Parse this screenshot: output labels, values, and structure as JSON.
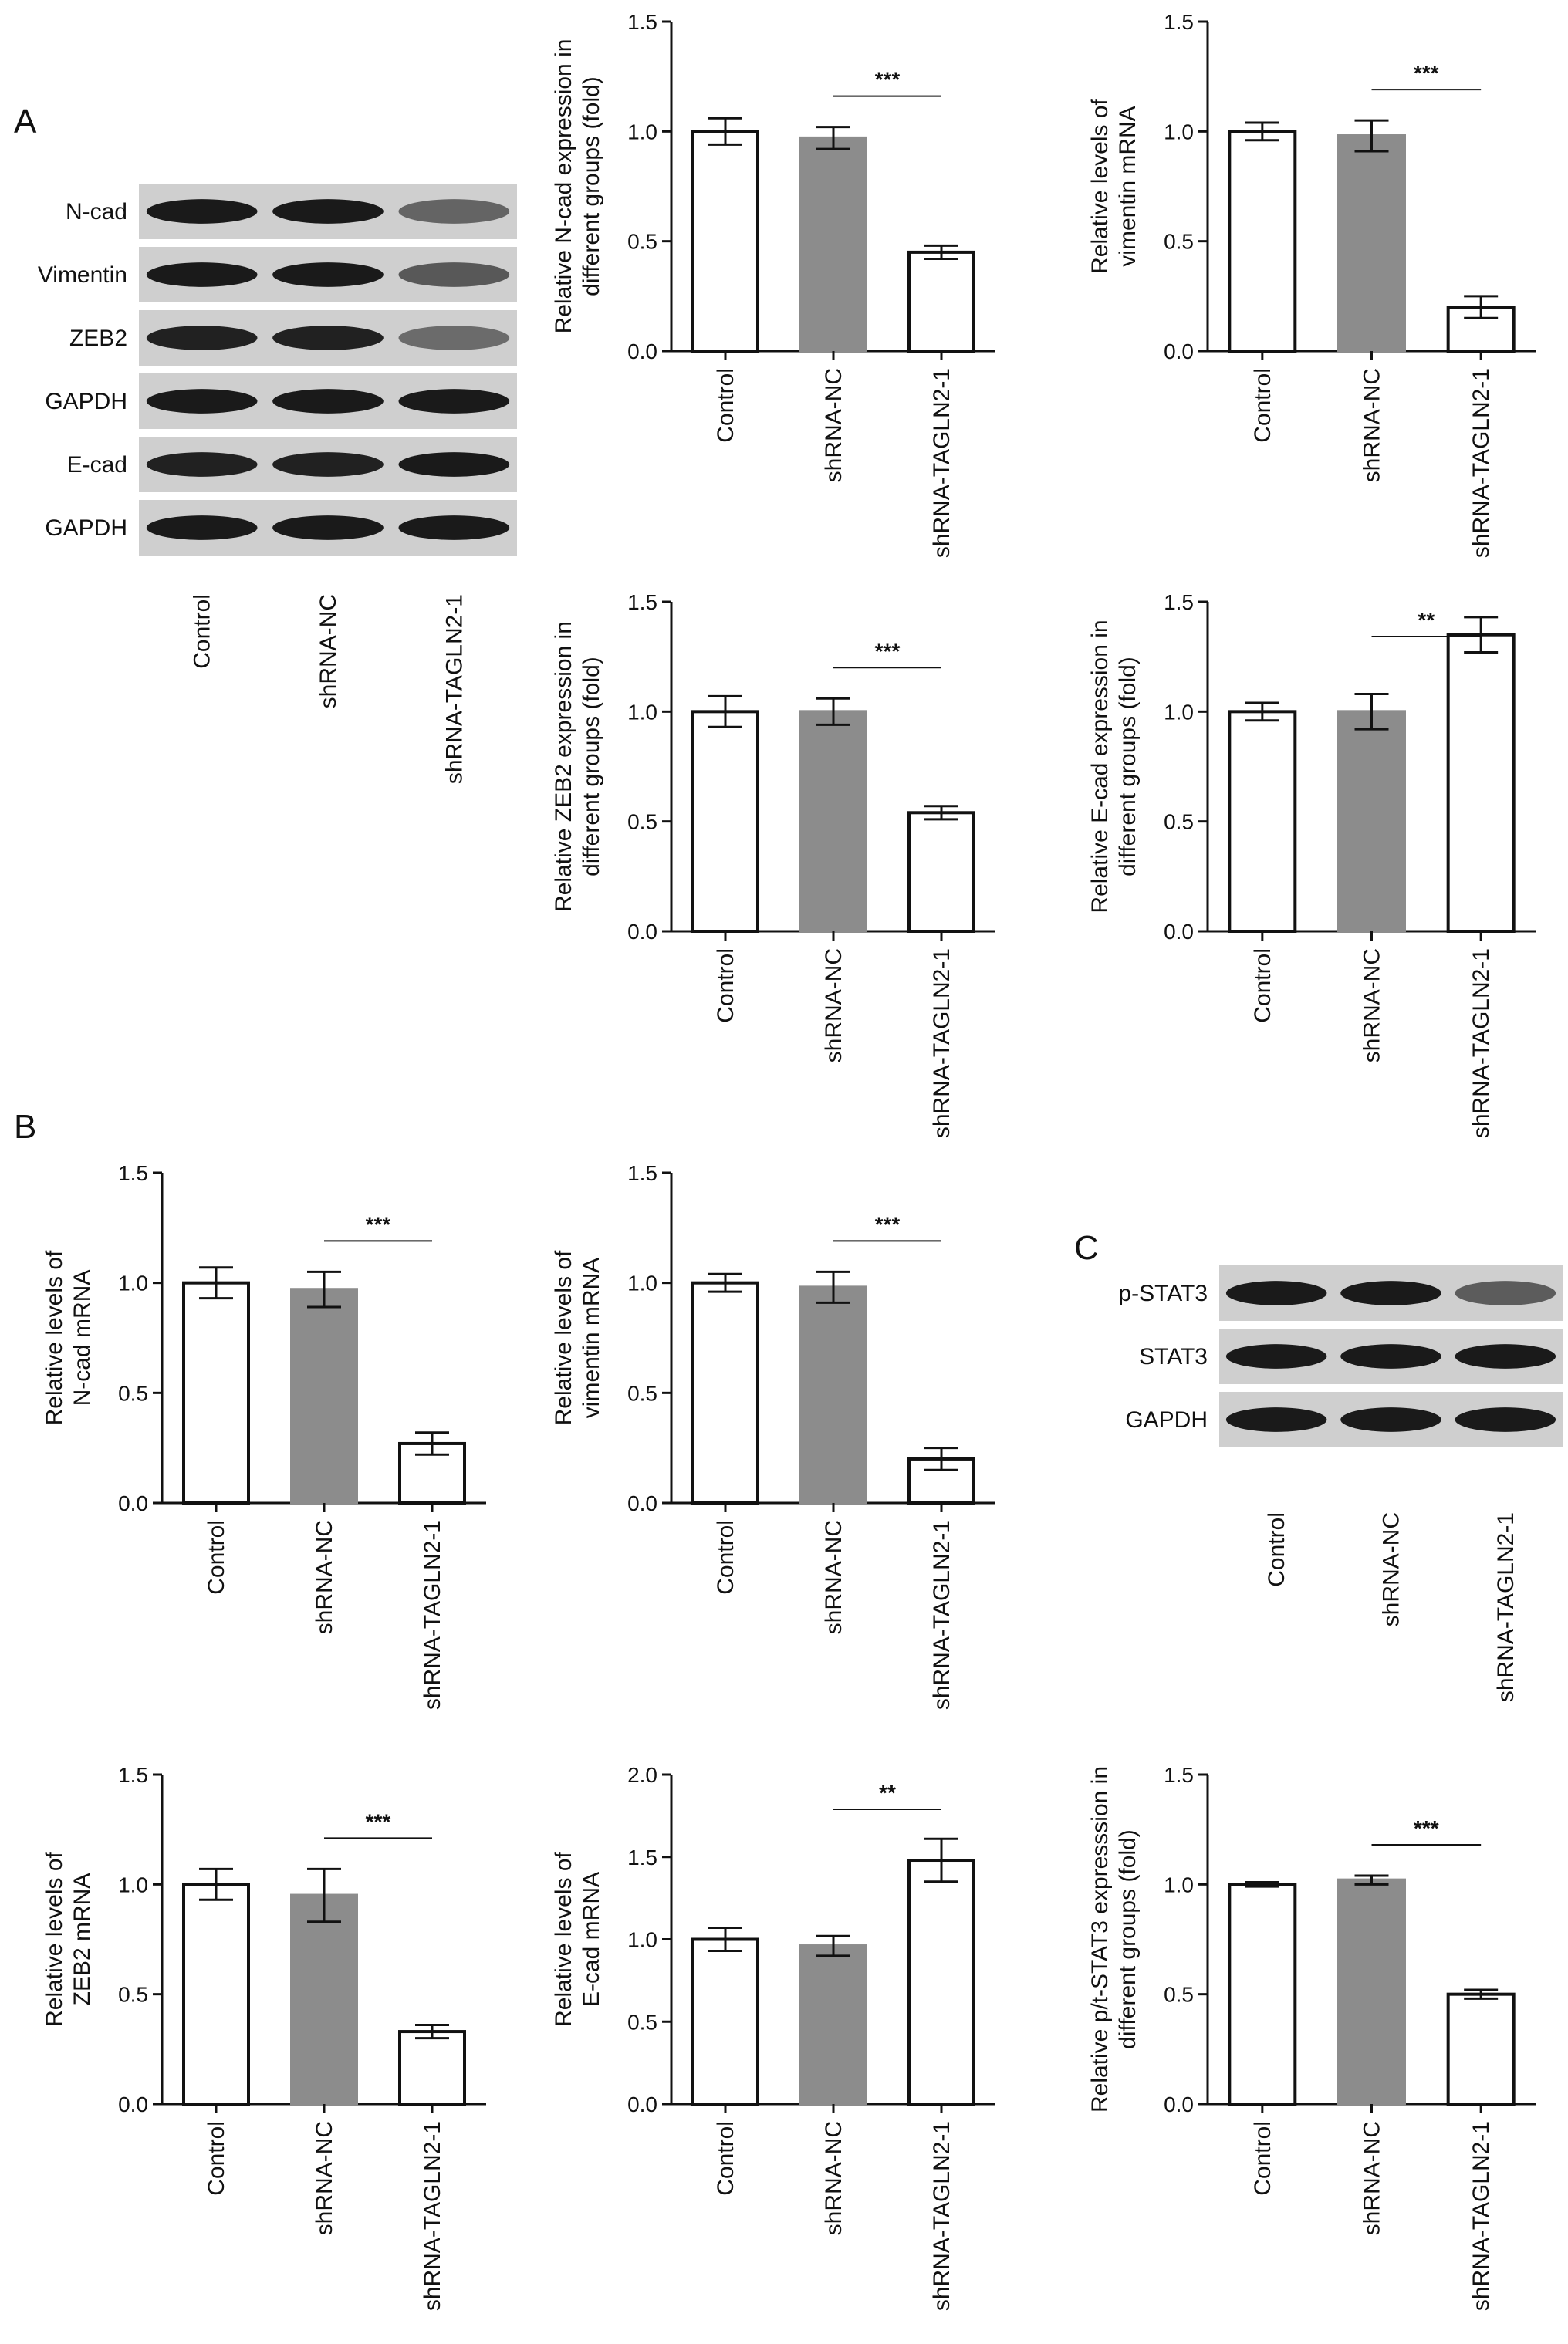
{
  "panels": [
    "A",
    "B",
    "C"
  ],
  "categories": [
    "Control",
    "shRNA-NC",
    "shRNA-TAGLN2-1"
  ],
  "colors": {
    "control": "#ffffff",
    "shRNA_NC": "#8c8c8c",
    "knockdown": "#ffffff",
    "stroke": "#111111",
    "blot_bg": "#cfcfcf",
    "band": "#1a1a1a"
  },
  "blots": [
    {
      "panel": "A",
      "rows": [
        {
          "label": "N-cad",
          "intensity": [
            1.0,
            1.0,
            0.45
          ]
        },
        {
          "label": "Vimentin",
          "intensity": [
            1.0,
            1.0,
            0.55
          ]
        },
        {
          "label": "ZEB2",
          "intensity": [
            0.95,
            0.95,
            0.4
          ]
        },
        {
          "label": "GAPDH",
          "intensity": [
            1.0,
            1.0,
            1.0
          ]
        },
        {
          "label": "E-cad",
          "intensity": [
            0.95,
            0.95,
            1.0
          ]
        },
        {
          "label": "GAPDH",
          "intensity": [
            1.0,
            1.0,
            1.0
          ]
        }
      ]
    },
    {
      "panel": "C",
      "rows": [
        {
          "label": "p-STAT3",
          "intensity": [
            1.0,
            1.0,
            0.5
          ]
        },
        {
          "label": "STAT3",
          "intensity": [
            1.0,
            1.0,
            1.0
          ]
        },
        {
          "label": "GAPDH",
          "intensity": [
            1.0,
            1.0,
            1.0
          ]
        }
      ]
    }
  ],
  "chart_data": [
    {
      "type": "bar",
      "panel": "A",
      "ylabel": [
        "Relative N-cad expression in",
        "different groups (fold)"
      ],
      "ylim": [
        0,
        1.5
      ],
      "yticks": [
        "0.0",
        "0.5",
        "1.0",
        "1.5"
      ],
      "values": [
        1.0,
        0.97,
        0.45
      ],
      "errors": [
        0.06,
        0.05,
        0.03
      ],
      "significance": "***",
      "sig_pair": [
        1,
        2
      ]
    },
    {
      "type": "bar",
      "panel": "A",
      "ylabel": [
        "Relative levels of",
        "vimentin mRNA"
      ],
      "ylim": [
        0,
        1.5
      ],
      "yticks": [
        "0.0",
        "0.5",
        "1.0",
        "1.5"
      ],
      "values": [
        1.0,
        0.98,
        0.2
      ],
      "errors": [
        0.04,
        0.07,
        0.05
      ],
      "significance": "***",
      "sig_pair": [
        1,
        2
      ]
    },
    {
      "type": "bar",
      "panel": "A",
      "ylabel": [
        "Relative ZEB2 expression in",
        "different groups (fold)"
      ],
      "ylim": [
        0,
        1.5
      ],
      "yticks": [
        "0.0",
        "0.5",
        "1.0",
        "1.5"
      ],
      "values": [
        1.0,
        1.0,
        0.54
      ],
      "errors": [
        0.07,
        0.06,
        0.03
      ],
      "significance": "***",
      "sig_pair": [
        1,
        2
      ]
    },
    {
      "type": "bar",
      "panel": "A",
      "ylabel": [
        "Relative E-cad expression in",
        "different groups (fold)"
      ],
      "ylim": [
        0,
        1.5
      ],
      "yticks": [
        "0.0",
        "0.5",
        "1.0",
        "1.5"
      ],
      "values": [
        1.0,
        1.0,
        1.35
      ],
      "errors": [
        0.04,
        0.08,
        0.08
      ],
      "significance": "**",
      "sig_pair": [
        1,
        2
      ]
    },
    {
      "type": "bar",
      "panel": "B",
      "ylabel": [
        "Relative levels of",
        "N-cad mRNA"
      ],
      "ylim": [
        0,
        1.5
      ],
      "yticks": [
        "0.0",
        "0.5",
        "1.0",
        "1.5"
      ],
      "values": [
        1.0,
        0.97,
        0.27
      ],
      "errors": [
        0.07,
        0.08,
        0.05
      ],
      "significance": "***",
      "sig_pair": [
        1,
        2
      ]
    },
    {
      "type": "bar",
      "panel": "B",
      "ylabel": [
        "Relative levels of",
        "vimentin mRNA"
      ],
      "ylim": [
        0,
        1.5
      ],
      "yticks": [
        "0.0",
        "0.5",
        "1.0",
        "1.5"
      ],
      "values": [
        1.0,
        0.98,
        0.2
      ],
      "errors": [
        0.04,
        0.07,
        0.05
      ],
      "significance": "***",
      "sig_pair": [
        1,
        2
      ]
    },
    {
      "type": "bar",
      "panel": "B",
      "ylabel": [
        "Relative levels of",
        "ZEB2 mRNA"
      ],
      "ylim": [
        0,
        1.5
      ],
      "yticks": [
        "0.0",
        "0.5",
        "1.0",
        "1.5"
      ],
      "values": [
        1.0,
        0.95,
        0.33
      ],
      "errors": [
        0.07,
        0.12,
        0.03
      ],
      "significance": "***",
      "sig_pair": [
        1,
        2
      ]
    },
    {
      "type": "bar",
      "panel": "B",
      "ylabel": [
        "Relative levels of",
        "E-cad mRNA"
      ],
      "ylim": [
        0,
        2.0
      ],
      "yticks": [
        "0.0",
        "0.5",
        "1.0",
        "1.5",
        "2.0"
      ],
      "values": [
        1.0,
        0.96,
        1.48
      ],
      "errors": [
        0.07,
        0.06,
        0.13
      ],
      "significance": "**",
      "sig_pair": [
        1,
        2
      ]
    },
    {
      "type": "bar",
      "panel": "C",
      "ylabel": [
        "Relative p/t-STAT3 expresssion in",
        "different groups (fold)"
      ],
      "ylim": [
        0,
        1.5
      ],
      "yticks": [
        "0.0",
        "0.5",
        "1.0",
        "1.5"
      ],
      "values": [
        1.0,
        1.02,
        0.5
      ],
      "errors": [
        0.01,
        0.02,
        0.02
      ],
      "significance": "***",
      "sig_pair": [
        1,
        2
      ]
    }
  ]
}
